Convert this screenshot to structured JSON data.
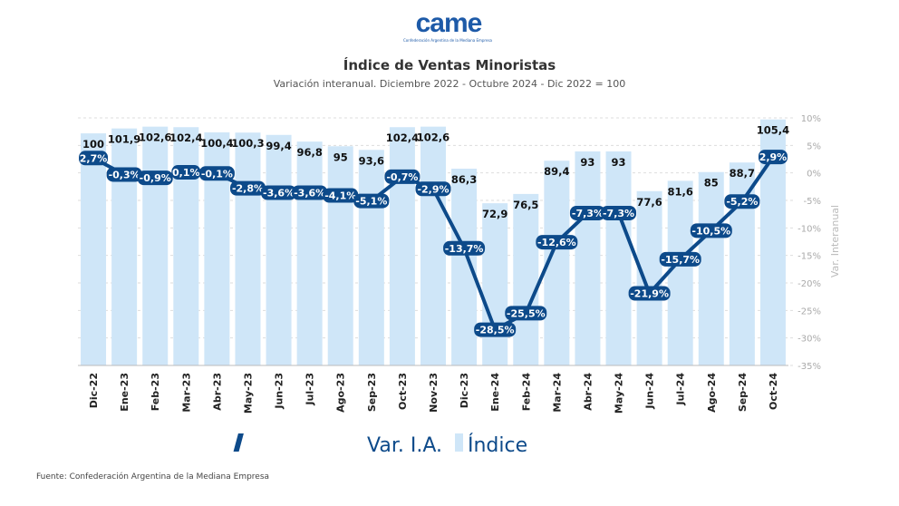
{
  "logo": {
    "text": "came",
    "subtitle": "Confederación Argentina de la Mediana Empresa"
  },
  "source": "Fuente: Confederación Argentina de la Mediana Empresa",
  "colors": {
    "bar": "#cfe6f8",
    "line": "#0d4a8a",
    "grid": "#ddd"
  },
  "chart_data": {
    "type": "bar+line",
    "title": "Índice de Ventas Minoristas",
    "subtitle": "Variación interanual. Diciembre 2022 - Octubre 2024 - Dic 2022 = 100",
    "categories": [
      "Dic-22",
      "Ene-23",
      "Feb-23",
      "Mar-23",
      "Abr-23",
      "May-23",
      "Jun-23",
      "Jul-23",
      "Ago-23",
      "Sep-23",
      "Oct-23",
      "Nov-23",
      "Dic-23",
      "Ene-24",
      "Feb-24",
      "Mar-24",
      "Abr-24",
      "May-24",
      "Jun-24",
      "Jul-24",
      "Ago-24",
      "Sep-24",
      "Oct-24"
    ],
    "series": [
      {
        "name": "Índice",
        "type": "bar",
        "values": [
          100,
          101.9,
          102.6,
          102.4,
          100.4,
          100.3,
          99.4,
          96.8,
          95,
          93.6,
          102.4,
          102.6,
          86.3,
          72.9,
          76.5,
          89.4,
          93,
          93,
          77.6,
          81.6,
          85,
          88.7,
          105.4
        ],
        "labels": [
          "100",
          "101,9",
          "102,6",
          "102,4",
          "100,4",
          "100,3",
          "99,4",
          "96,8",
          "95",
          "93,6",
          "102,4",
          "102,6",
          "86,3",
          "72,9",
          "76,5",
          "89,4",
          "93",
          "93",
          "77,6",
          "81,6",
          "85",
          "88,7",
          "105,4"
        ]
      },
      {
        "name": "Var. I.A.",
        "type": "line",
        "axis": "right",
        "values": [
          2.7,
          -0.3,
          -0.9,
          0.1,
          -0.1,
          -2.8,
          -3.6,
          -3.6,
          -4.1,
          -5.1,
          -0.7,
          -2.9,
          -13.7,
          -28.5,
          -25.5,
          -12.6,
          -7.3,
          -7.3,
          -21.9,
          -15.7,
          -10.5,
          -5.2,
          2.9
        ],
        "labels": [
          "2,7%",
          "-0,3%",
          "-0,9%",
          "0,1%",
          "-0,1%",
          "-2,8%",
          "-3,6%",
          "-3,6%",
          "-4,1%",
          "-5,1%",
          "-0,7%",
          "-2,9%",
          "-13,7%",
          "-28,5%",
          "-25,5%",
          "-12,6%",
          "-7,3%",
          "-7,3%",
          "-21,9%",
          "-15,7%",
          "-10,5%",
          "-5,2%",
          "2,9%"
        ]
      }
    ],
    "index_axis_range": [
      10,
      106
    ],
    "y_right": {
      "label": "Var. Interanual",
      "range": [
        -35,
        10
      ],
      "ticks": [
        10,
        5,
        0,
        -5,
        -10,
        -15,
        -20,
        -25,
        -30,
        -35
      ],
      "tick_labels": [
        "10%",
        "5%",
        "0%",
        "-5%",
        "-10%",
        "-15%",
        "-20%",
        "-25%",
        "-30%",
        "-35%"
      ]
    },
    "legend": {
      "position": "bottom",
      "items": [
        "Var. I.A.",
        "Índice"
      ]
    },
    "grid": true
  }
}
